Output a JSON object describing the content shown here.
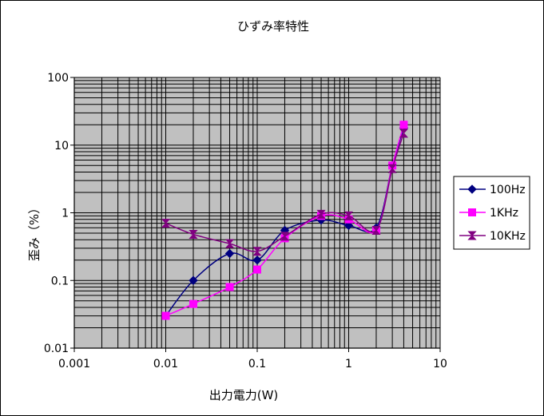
{
  "chart_data": {
    "type": "line",
    "title": "ひずみ率特性",
    "xlabel": "出力電力(W)",
    "ylabel": "歪み（%）",
    "xscale": "log",
    "yscale": "log",
    "xlim": [
      0.001,
      10
    ],
    "ylim": [
      0.01,
      100
    ],
    "xticks": [
      "0.001",
      "0.01",
      "0.1",
      "1",
      "10"
    ],
    "yticks": [
      "0.01",
      "0.1",
      "1",
      "10",
      "100"
    ],
    "grid": true,
    "legend_position": "right",
    "plot_background": "#c0c0c0",
    "series": [
      {
        "name": "100Hz",
        "color": "#000080",
        "marker": "diamond",
        "x": [
          0.01,
          0.02,
          0.05,
          0.1,
          0.2,
          0.5,
          1,
          2,
          3,
          4
        ],
        "y": [
          0.03,
          0.1,
          0.25,
          0.2,
          0.55,
          0.78,
          0.65,
          0.6,
          5,
          18
        ]
      },
      {
        "name": "1KHz",
        "color": "#ff00ff",
        "marker": "square",
        "x": [
          0.01,
          0.02,
          0.05,
          0.1,
          0.2,
          0.5,
          1,
          2,
          3,
          4
        ],
        "y": [
          0.03,
          0.045,
          0.08,
          0.145,
          0.42,
          0.9,
          0.8,
          0.55,
          5,
          20
        ]
      },
      {
        "name": "10KHz",
        "color": "#800080",
        "marker": "hourglass",
        "x": [
          0.01,
          0.02,
          0.05,
          0.1,
          0.2,
          0.5,
          1,
          2,
          3,
          4
        ],
        "y": [
          0.7,
          0.48,
          0.35,
          0.27,
          0.45,
          0.95,
          0.9,
          0.55,
          4.5,
          15
        ]
      }
    ]
  }
}
